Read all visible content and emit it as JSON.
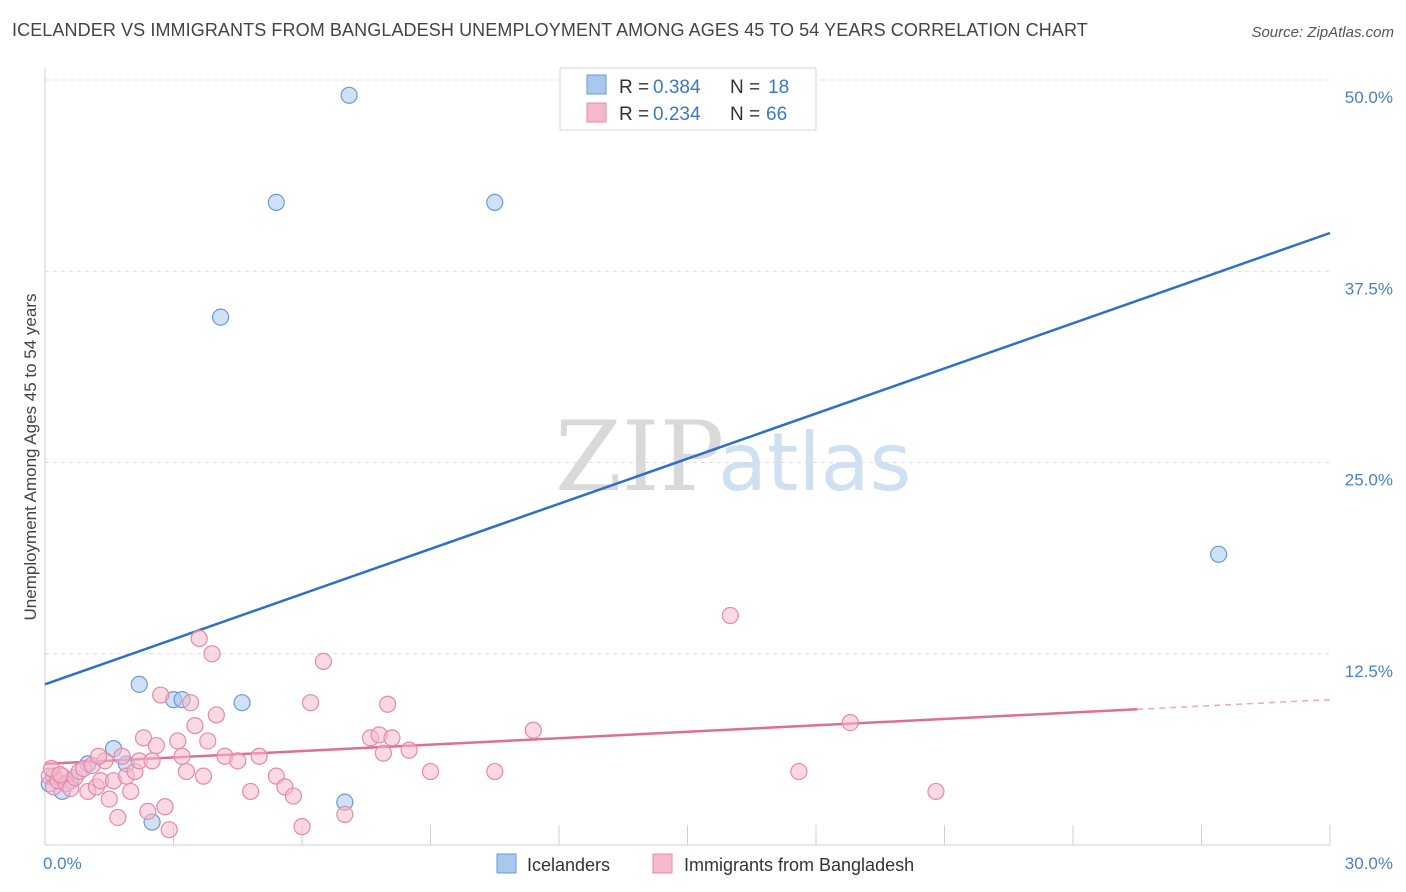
{
  "title": "ICELANDER VS IMMIGRANTS FROM BANGLADESH UNEMPLOYMENT AMONG AGES 45 TO 54 YEARS CORRELATION CHART",
  "source": "Source: ZipAtlas.com",
  "watermark": {
    "zip": "ZIP",
    "atlas": "atlas"
  },
  "legend": {
    "r_label": "R =",
    "n_label": "N =",
    "rows": [
      {
        "r": "0.384",
        "n": "18",
        "color": "#a9c8ef"
      },
      {
        "r": "0.234",
        "n": "66",
        "color": "#f6b9cc"
      }
    ]
  },
  "chart_data": {
    "type": "scatter",
    "ylabel": "Unemployment Among Ages 45 to 54 years",
    "xlim": [
      0,
      30
    ],
    "ylim": [
      0,
      50
    ],
    "x_ticks": [
      "0.0%",
      "30.0%"
    ],
    "y_ticks": [
      {
        "value": 12.5,
        "label": "12.5%"
      },
      {
        "value": 25.0,
        "label": "25.0%"
      },
      {
        "value": 37.5,
        "label": "37.5%"
      },
      {
        "value": 50.0,
        "label": "50.0%"
      }
    ],
    "series": [
      {
        "name": "Icelanders",
        "color": "#a9c8ef",
        "stroke": "#6a9ad6",
        "line_color": "#2e6fce",
        "trend": {
          "x0": 0,
          "y0": 10.5,
          "x1": 30,
          "y1": 40.0,
          "solid_until": 30
        },
        "points": [
          [
            0.1,
            4.0
          ],
          [
            0.4,
            3.5
          ],
          [
            1.0,
            5.3
          ],
          [
            1.6,
            6.3
          ],
          [
            1.9,
            5.3
          ],
          [
            2.2,
            10.5
          ],
          [
            3.0,
            9.5
          ],
          [
            3.2,
            9.5
          ],
          [
            4.6,
            9.3
          ],
          [
            2.5,
            1.5
          ],
          [
            7.0,
            2.8
          ],
          [
            4.1,
            34.5
          ],
          [
            5.4,
            42.0
          ],
          [
            7.1,
            49.0
          ],
          [
            10.5,
            42.0
          ],
          [
            27.4,
            19.0
          ],
          [
            0.2,
            4.5
          ],
          [
            0.6,
            4.2
          ]
        ]
      },
      {
        "name": "Immigrants from Bangladesh",
        "color": "#f6b9cc",
        "stroke": "#e58aa7",
        "line_color": "#e26c95",
        "trend": {
          "x0": 0,
          "y0": 5.3,
          "x1": 30,
          "y1": 9.5,
          "solid_until": 25.5
        },
        "points": [
          [
            0.1,
            4.5
          ],
          [
            0.2,
            3.8
          ],
          [
            0.3,
            4.2
          ],
          [
            0.4,
            4.5
          ],
          [
            0.5,
            4.0
          ],
          [
            0.6,
            3.7
          ],
          [
            0.7,
            4.4
          ],
          [
            0.8,
            4.8
          ],
          [
            0.9,
            5.0
          ],
          [
            1.0,
            3.5
          ],
          [
            1.1,
            5.2
          ],
          [
            1.2,
            3.8
          ],
          [
            1.3,
            4.2
          ],
          [
            1.4,
            5.5
          ],
          [
            1.5,
            3.0
          ],
          [
            1.6,
            4.2
          ],
          [
            1.8,
            5.8
          ],
          [
            1.9,
            4.5
          ],
          [
            2.0,
            3.5
          ],
          [
            2.1,
            4.8
          ],
          [
            2.2,
            5.5
          ],
          [
            2.3,
            7.0
          ],
          [
            2.4,
            2.2
          ],
          [
            2.5,
            5.5
          ],
          [
            2.7,
            9.8
          ],
          [
            2.8,
            2.5
          ],
          [
            2.9,
            1.0
          ],
          [
            3.1,
            6.8
          ],
          [
            3.2,
            5.8
          ],
          [
            3.3,
            4.8
          ],
          [
            3.4,
            9.3
          ],
          [
            3.5,
            7.8
          ],
          [
            3.6,
            13.5
          ],
          [
            3.7,
            4.5
          ],
          [
            3.8,
            6.8
          ],
          [
            3.9,
            12.5
          ],
          [
            4.0,
            8.5
          ],
          [
            4.2,
            5.8
          ],
          [
            4.5,
            5.5
          ],
          [
            4.8,
            3.5
          ],
          [
            5.0,
            5.8
          ],
          [
            5.4,
            4.5
          ],
          [
            5.6,
            3.8
          ],
          [
            5.8,
            3.2
          ],
          [
            6.0,
            1.2
          ],
          [
            6.2,
            9.3
          ],
          [
            6.5,
            12.0
          ],
          [
            7.0,
            2.0
          ],
          [
            7.6,
            7.0
          ],
          [
            7.8,
            7.2
          ],
          [
            7.9,
            6.0
          ],
          [
            8.0,
            9.2
          ],
          [
            8.1,
            7.0
          ],
          [
            8.5,
            6.2
          ],
          [
            9.0,
            4.8
          ],
          [
            10.5,
            4.8
          ],
          [
            11.4,
            7.5
          ],
          [
            16.0,
            15.0
          ],
          [
            17.6,
            4.8
          ],
          [
            18.8,
            8.0
          ],
          [
            20.8,
            3.5
          ],
          [
            1.7,
            1.8
          ],
          [
            0.15,
            5.0
          ],
          [
            0.35,
            4.6
          ],
          [
            2.6,
            6.5
          ],
          [
            1.25,
            5.8
          ]
        ]
      }
    ],
    "legend_position": "top-center",
    "grid": true
  }
}
